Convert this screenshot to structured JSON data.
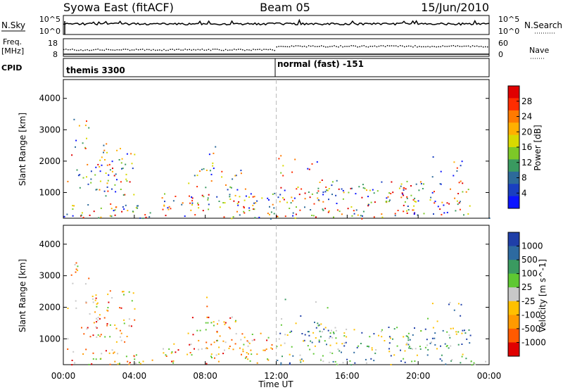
{
  "header": {
    "station": "Syowa East (fitACF)",
    "beam": "Beam 05",
    "date": "15/Jun/2010"
  },
  "strips": {
    "nsky_label": "N.Sky",
    "nsearch_label": "N.Search",
    "left_ticks": [
      "10^5",
      "10^0"
    ],
    "right_ticks": [
      "10^5",
      "10^0"
    ],
    "freq_label": "Freq.",
    "freq_unit": "[MHz]",
    "freq_ticks": [
      "18",
      "8"
    ],
    "nave_label": "Nave",
    "nave_ticks": [
      "60",
      "0"
    ],
    "cpid_label": "CPID",
    "cpid_modes": [
      "themis 3300",
      "normal (fast) -151"
    ]
  },
  "chart_data": [
    {
      "type": "heatmap",
      "panel": "power",
      "ylabel": "Slant Range [km]",
      "xlabel": "Time UT",
      "x_ticks": [
        "00:00",
        "04:00",
        "08:00",
        "12:00",
        "16:00",
        "20:00",
        "00:00"
      ],
      "x_range_hours": [
        0,
        24
      ],
      "y_ticks": [
        1000,
        2000,
        3000,
        4000
      ],
      "ylim": [
        180,
        4600
      ],
      "colorbar": {
        "label": "Power [dB]",
        "ticks": [
          28,
          24,
          20,
          16,
          12,
          8,
          4
        ],
        "colors": [
          "#e00000",
          "#ff2d00",
          "#ff7a00",
          "#ffb000",
          "#d9d900",
          "#7dc828",
          "#3a9a60",
          "#2d6a9a",
          "#1a3fc0",
          "#0b14ff"
        ]
      }
    },
    {
      "type": "heatmap",
      "panel": "velocity",
      "ylabel": "Slant Range [km]",
      "xlabel": "Time UT",
      "x_ticks": [
        "00:00",
        "04:00",
        "08:00",
        "12:00",
        "16:00",
        "20:00",
        "00:00"
      ],
      "x_range_hours": [
        0,
        24
      ],
      "y_ticks": [
        1000,
        2000,
        3000,
        4000
      ],
      "ylim": [
        180,
        4600
      ],
      "colorbar": {
        "label": "Velocity [m s^-1]",
        "ticks": [
          1000,
          500,
          100,
          25,
          -25,
          -100,
          -500,
          -1000
        ],
        "colors": [
          "#1f3fa8",
          "#2d6aa0",
          "#3a9a60",
          "#5ec832",
          "#c8c8c8",
          "#ffc000",
          "#ff9a00",
          "#ff5a00",
          "#e00000"
        ]
      }
    }
  ],
  "echo_regions": [
    {
      "t0": 0.4,
      "t1": 1.4,
      "r0": 2200,
      "r1": 3500,
      "den": 0.35
    },
    {
      "t0": 0.2,
      "t1": 3.0,
      "r0": 1000,
      "r1": 2300,
      "den": 0.28
    },
    {
      "t0": 1.5,
      "t1": 4.0,
      "r0": 900,
      "r1": 2600,
      "den": 0.45
    },
    {
      "t0": 0.0,
      "t1": 4.2,
      "r0": 200,
      "r1": 700,
      "den": 0.6
    },
    {
      "t0": 4.2,
      "t1": 5.8,
      "r0": 200,
      "r1": 400,
      "den": 0.55
    },
    {
      "t0": 5.5,
      "t1": 11.0,
      "r0": 400,
      "r1": 1000,
      "den": 0.7
    },
    {
      "t0": 7.0,
      "t1": 10.0,
      "r0": 1100,
      "r1": 1800,
      "den": 0.45
    },
    {
      "t0": 8.0,
      "t1": 8.6,
      "r0": 1400,
      "r1": 2600,
      "den": 0.35
    },
    {
      "t0": 10.0,
      "t1": 12.0,
      "r0": 300,
      "r1": 1200,
      "den": 0.45
    },
    {
      "t0": 12.0,
      "t1": 16.0,
      "r0": 250,
      "r1": 1300,
      "den": 0.55
    },
    {
      "t0": 12.0,
      "t1": 15.0,
      "r0": 1400,
      "r1": 2300,
      "den": 0.18
    },
    {
      "t0": 14.0,
      "t1": 19.5,
      "r0": 700,
      "r1": 1400,
      "den": 0.45
    },
    {
      "t0": 16.0,
      "t1": 20.0,
      "r0": 200,
      "r1": 800,
      "den": 0.45
    },
    {
      "t0": 19.0,
      "t1": 23.0,
      "r0": 300,
      "r1": 1400,
      "den": 0.55
    },
    {
      "t0": 20.5,
      "t1": 22.5,
      "r0": 1500,
      "r1": 2200,
      "den": 0.25
    },
    {
      "t0": 0.0,
      "t1": 24.0,
      "r0": 180,
      "r1": 320,
      "den": 0.35
    }
  ]
}
